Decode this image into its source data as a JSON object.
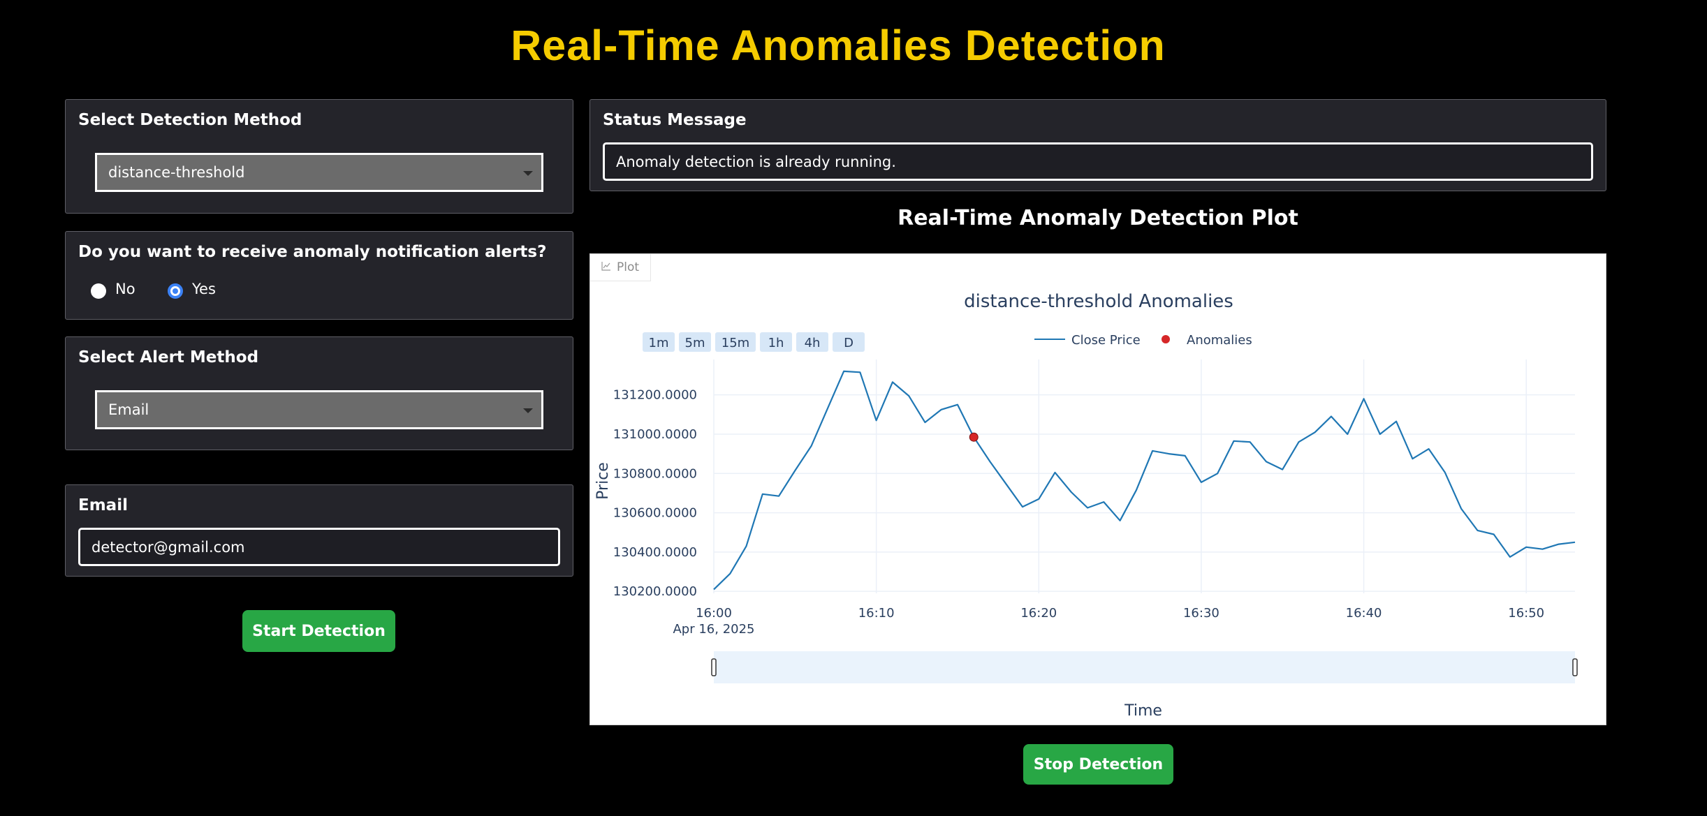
{
  "page": {
    "title": "Real-Time Anomalies Detection"
  },
  "detection_method": {
    "label": "Select Detection Method",
    "selected": "distance-threshold"
  },
  "notifications": {
    "question": "Do you want to receive anomaly notification alerts?",
    "options": [
      {
        "label": "No",
        "checked": false
      },
      {
        "label": "Yes",
        "checked": true
      }
    ]
  },
  "alert_method": {
    "label": "Select Alert Method",
    "selected": "Email"
  },
  "email": {
    "label": "Email",
    "value": "detector@gmail.com"
  },
  "start_button": {
    "label": "Start Detection"
  },
  "status": {
    "label": "Status Message",
    "message": "Anomaly detection is already running."
  },
  "plot_section": {
    "heading": "Real-Time Anomaly Detection Plot",
    "tab_label": "Plot",
    "range_buttons": [
      "1m",
      "5m",
      "15m",
      "1h",
      "4h",
      "D"
    ]
  },
  "stop_button": {
    "label": "Stop Detection"
  },
  "colors": {
    "title": "#f5cc00",
    "line": "#1f77b4",
    "anomaly": "#d62728",
    "button": "#28a745",
    "radio_selected": "#3b82f6"
  },
  "chart_data": {
    "type": "line",
    "title": "distance-threshold Anomalies",
    "xlabel": "Time",
    "ylabel": "Price",
    "x_tick_labels": [
      "16:00",
      "16:10",
      "16:20",
      "16:30",
      "16:40",
      "16:50"
    ],
    "x_tick_minutes": [
      0,
      10,
      20,
      30,
      40,
      50
    ],
    "x_date_label": "Apr 16, 2025",
    "y_tick_labels": [
      "130200.0000",
      "130400.0000",
      "130600.0000",
      "130800.0000",
      "131000.0000",
      "131200.0000"
    ],
    "y_ticks": [
      130200,
      130400,
      130600,
      130800,
      131000,
      131200
    ],
    "xlim_minutes": [
      0,
      53
    ],
    "ylim": [
      130190,
      131380
    ],
    "grid": true,
    "legend_position": "top-center",
    "series": [
      {
        "name": "Close Price",
        "x_minutes": [
          0,
          1,
          2,
          3,
          4,
          5,
          6,
          7,
          8,
          9,
          10,
          11,
          12,
          13,
          14,
          15,
          16,
          17,
          18,
          19,
          20,
          21,
          22,
          23,
          24,
          25,
          26,
          27,
          28,
          29,
          30,
          31,
          32,
          33,
          34,
          35,
          36,
          37,
          38,
          39,
          40,
          41,
          42,
          43,
          44,
          45,
          46,
          47,
          48,
          49,
          50,
          51,
          52,
          53
        ],
        "values": [
          130210,
          130290,
          130430,
          130695,
          130685,
          130815,
          130940,
          131130,
          131320,
          131315,
          131070,
          131265,
          131195,
          131060,
          131125,
          131150,
          130985,
          130860,
          130745,
          130630,
          130670,
          130805,
          130705,
          130625,
          130655,
          130560,
          130715,
          130915,
          130900,
          130890,
          130755,
          130800,
          130965,
          130960,
          130860,
          130820,
          130960,
          131010,
          131090,
          131000,
          131180,
          131000,
          131065,
          130875,
          130925,
          130805,
          130620,
          130510,
          130490,
          130375,
          130425,
          130415,
          130440,
          130450
        ]
      },
      {
        "name": "Anomalies",
        "mode": "markers",
        "x_minutes": [
          16
        ],
        "values": [
          130985
        ]
      }
    ]
  }
}
